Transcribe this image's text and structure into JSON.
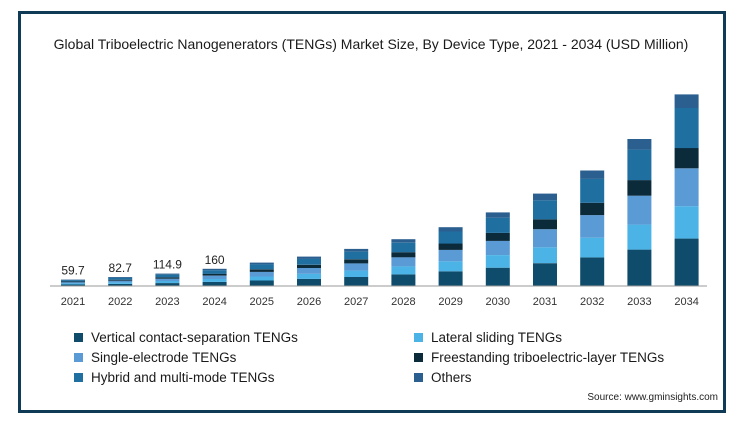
{
  "chart_data": {
    "type": "bar",
    "stacked": true,
    "title": "Global Triboelectric Nanogenerators (TENGs) Market Size, By Device Type, 2021 - 2034 (USD Million)",
    "categories": [
      "2021",
      "2022",
      "2023",
      "2024",
      "2025",
      "2026",
      "2027",
      "2028",
      "2029",
      "2030",
      "2031",
      "2032",
      "2033",
      "2034"
    ],
    "totals": [
      59.7,
      82.7,
      114.9,
      160,
      null,
      null,
      null,
      null,
      null,
      null,
      null,
      null,
      null,
      null
    ],
    "total_labels": [
      "59.7",
      "82.7",
      "114.9",
      "160",
      "",
      "",
      "",
      "",
      "",
      "",
      "",
      "",
      "",
      ""
    ],
    "series": [
      {
        "name": "Vertical contact-separation TENGs",
        "color": "#0f4c6c",
        "values": [
          14,
          19,
          27,
          38,
          51,
          66,
          84,
          108,
          136,
          170,
          212,
          265,
          338,
          440
        ]
      },
      {
        "name": "Lateral sliding TENGs",
        "color": "#4bb3e6",
        "values": [
          10,
          14,
          19,
          27,
          37,
          47,
          59,
          74,
          93,
          117,
          147,
          183,
          232,
          300
        ]
      },
      {
        "name": "Single-electrode TENGs",
        "color": "#5b9bd5",
        "values": [
          12,
          16,
          22,
          31,
          43,
          54,
          67,
          85,
          106,
          132,
          168,
          210,
          268,
          352
        ]
      },
      {
        "name": "Freestanding triboelectric-layer TENGs",
        "color": "#0b2a3a",
        "values": [
          7,
          9,
          13,
          18,
          24,
          30,
          38,
          47,
          59,
          74,
          92,
          114,
          145,
          188
        ]
      },
      {
        "name": "Hybrid and multi-mode TENGs",
        "color": "#1f6fa0",
        "values": [
          11.7,
          16.7,
          23.9,
          33,
          45,
          55,
          70,
          88,
          112,
          140,
          176,
          222,
          283,
          372
        ]
      },
      {
        "name": "Others",
        "color": "#2a5f8f",
        "values": [
          5,
          8,
          10,
          13,
          17,
          21,
          26,
          32,
          40,
          50,
          62,
          78,
          98,
          126
        ]
      }
    ],
    "ylim": [
      0,
      1800
    ],
    "grid": false,
    "legend_position": "bottom"
  },
  "source": "Source: www.gminsights.com"
}
